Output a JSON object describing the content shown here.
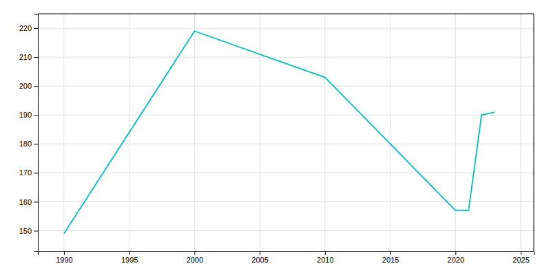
{
  "chart_data": {
    "type": "line",
    "x": [
      1990,
      2000,
      2010,
      2020,
      2021,
      2022,
      2023
    ],
    "values": [
      149,
      219,
      203,
      157,
      157,
      190,
      191
    ],
    "color": "#00BFBF",
    "xlim": [
      1988,
      2026
    ],
    "ylim": [
      143,
      225
    ],
    "xticks": [
      1990,
      1995,
      2000,
      2005,
      2010,
      2015,
      2020,
      2025
    ],
    "yticks": [
      150,
      160,
      170,
      180,
      190,
      200,
      210,
      220
    ],
    "grid": true
  }
}
